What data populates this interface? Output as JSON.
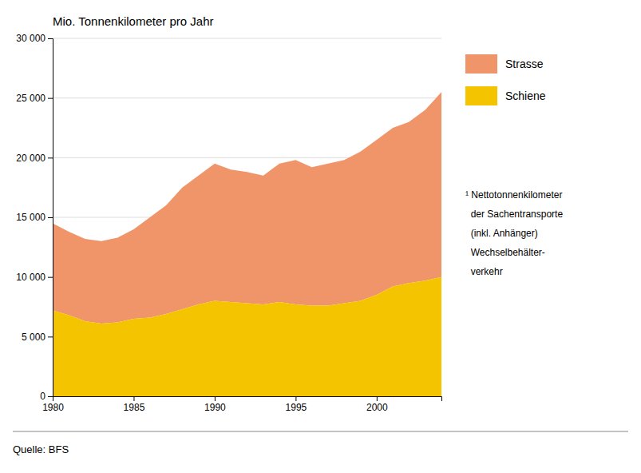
{
  "chart_data": {
    "type": "area",
    "title": "Mio. Tonnenkilometer pro Jahr",
    "source": "Quelle: BFS",
    "annotations": [
      "¹ Nettotonnenkilometer",
      "  der Sachentransporte",
      "  (inkl. Anhänger)",
      "  Wechselbehälter-",
      "  verkehr"
    ],
    "x": [
      1980,
      1981,
      1982,
      1983,
      1984,
      1985,
      1986,
      1987,
      1988,
      1989,
      1990,
      1991,
      1992,
      1993,
      1994,
      1995,
      1996,
      1997,
      1998,
      1999,
      2000,
      2001,
      2002,
      2003,
      2004
    ],
    "series": [
      {
        "name": "Strasse",
        "color": "#F0956A",
        "values": [
          7300,
          7000,
          6900,
          6900,
          7100,
          7500,
          8400,
          9100,
          10200,
          10800,
          11500,
          11100,
          11000,
          10800,
          11600,
          12100,
          11600,
          11900,
          12000,
          12500,
          13000,
          13300,
          13500,
          14300,
          15500
        ]
      },
      {
        "name": "Schiene",
        "color": "#F5C400",
        "values": [
          7200,
          6800,
          6300,
          6100,
          6200,
          6500,
          6600,
          6900,
          7300,
          7700,
          8000,
          7900,
          7800,
          7700,
          7900,
          7700,
          7600,
          7600,
          7800,
          8000,
          8500,
          9200,
          9500,
          9700,
          10000
        ]
      }
    ],
    "stacked": true,
    "xlim": [
      1980,
      2004
    ],
    "xticks": [
      1980,
      1985,
      1990,
      1995,
      2000
    ],
    "ylim": [
      0,
      30000
    ],
    "yticks": [
      0,
      {
        "value": 5000,
        "label": "5 000"
      },
      {
        "value": 10000,
        "label": "10 000"
      },
      {
        "value": 15000,
        "label": "15 000"
      },
      {
        "value": 20000,
        "label": "20 000"
      },
      {
        "value": 25000,
        "label": "25 000"
      },
      {
        "value": 30000,
        "label": "30 000"
      }
    ],
    "grid": true,
    "legend": "right"
  }
}
